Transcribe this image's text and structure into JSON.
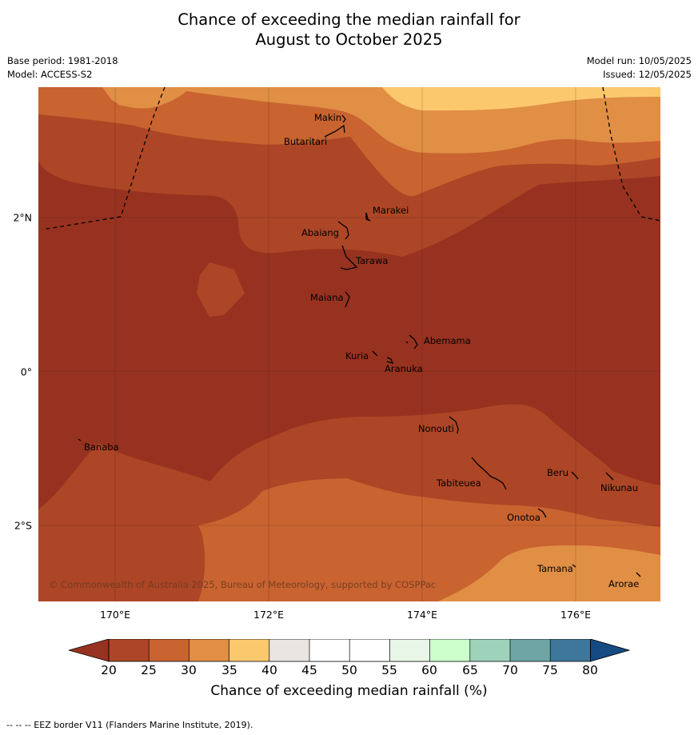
{
  "title_line1": "Chance of exceeding the median rainfall for",
  "title_line2": "August to October 2025",
  "meta": {
    "base_period": "Base period: 1981-2018",
    "model": "Model: ACCESS-S2",
    "model_run": "Model run: 10/05/2025",
    "issued": "Issued: 12/05/2025"
  },
  "map": {
    "copyright": "© Commonwealth of Australia 2025, Bureau of Meteorology, supported by COSPPac",
    "longitudes": [
      "170°E",
      "172°E",
      "174°E",
      "176°E"
    ],
    "latitudes": [
      "2°N",
      "0°",
      "2°S"
    ],
    "places": [
      "Makin",
      "Butaritari",
      "Marakei",
      "Abaiang",
      "Tarawa",
      "Maiana",
      "Abemama",
      "Kuria",
      "Aranuka",
      "Nonouti",
      "Banaba",
      "Beru",
      "Tabiteuea",
      "Nikunau",
      "Onotoa",
      "Tamana",
      "Arorae"
    ]
  },
  "legend": {
    "label": "Chance of exceeding median rainfall (%)",
    "ticks": [
      "20",
      "25",
      "30",
      "35",
      "40",
      "45",
      "50",
      "55",
      "60",
      "65",
      "70",
      "75",
      "80"
    ],
    "colors": {
      "below_20": "#983220",
      "20_25": "#ad4626",
      "25_30": "#c96330",
      "30_35": "#e08f45",
      "35_40": "#fcc86e",
      "40_45": "#eae5e2",
      "45_50": "#ffffff",
      "50_55": "#ffffff",
      "55_60": "#e8f6e8",
      "60_65": "#ccffcc",
      "65_70": "#9ed2bb",
      "70_75": "#6ea6a6",
      "75_80": "#3f779b",
      "above_80": "#154a82"
    }
  },
  "footnote": "-- -- -- EEZ border V11 (Flanders Marine Institute, 2019)."
}
